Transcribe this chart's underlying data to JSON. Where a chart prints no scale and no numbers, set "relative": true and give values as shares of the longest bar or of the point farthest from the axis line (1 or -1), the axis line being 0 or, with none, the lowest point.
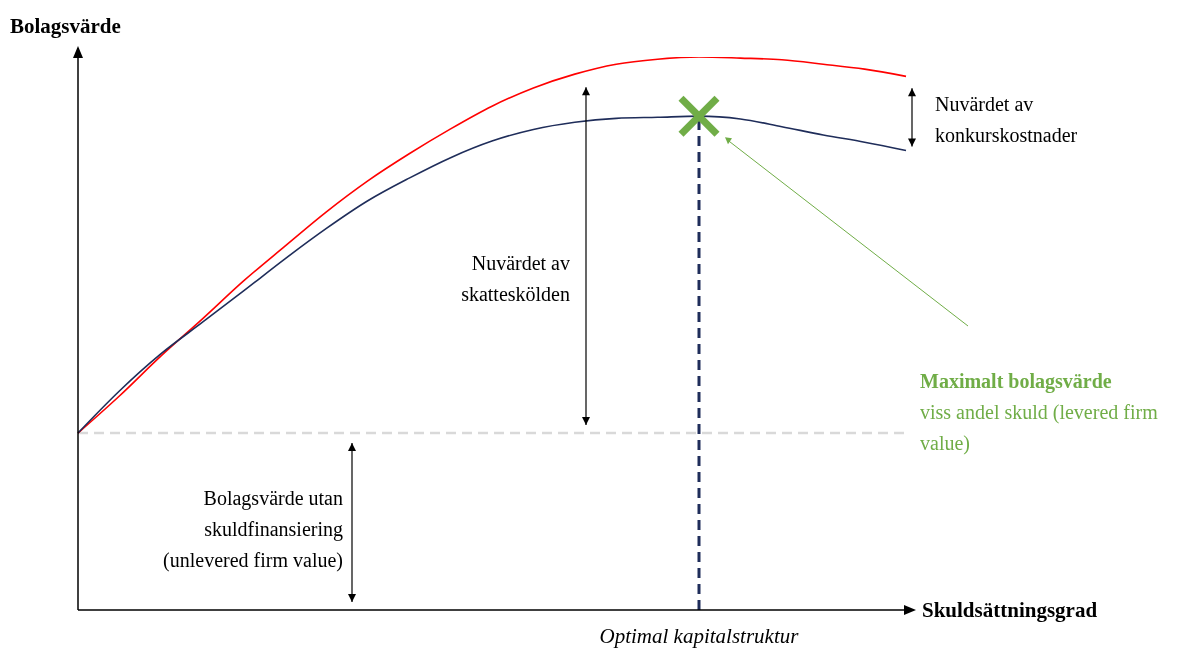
{
  "chart_data": {
    "type": "line",
    "relative": true,
    "xlabel": "Skuldsättningsgrad",
    "ylabel": "Bolagsvärde",
    "categories": [
      null,
      null,
      null,
      null,
      null,
      null,
      null,
      null,
      null,
      null,
      null,
      null,
      null,
      null,
      null,
      null,
      null,
      null,
      null,
      null,
      null
    ],
    "series": [
      {
        "color": "#ff0000",
        "values": [
          0.32,
          0.387,
          0.459,
          0.526,
          0.595,
          0.658,
          0.72,
          0.776,
          0.825,
          0.87,
          0.911,
          0.944,
          0.969,
          0.987,
          0.996,
          1,
          0.998,
          0.995,
          0.987,
          0.978,
          0.965
        ]
      },
      {
        "color": "#1f2d5a",
        "values": [
          0.32,
          0.396,
          0.463,
          0.52,
          0.577,
          0.635,
          0.69,
          0.74,
          0.781,
          0.818,
          0.848,
          0.869,
          0.882,
          0.889,
          0.891,
          0.893,
          0.888,
          0.874,
          0.859,
          0.846,
          0.831
        ]
      }
    ],
    "ref_lines": [
      {
        "axis": "y",
        "value": 0.32,
        "color": "#d9d9d9",
        "line_style": "dashed"
      },
      {
        "axis": "x",
        "label": "Optimal kapitalstruktur",
        "color": "#1f2d5a",
        "line_style": "dashed"
      }
    ],
    "annotations": [
      "Nuvärdet av skatteskölden",
      "Nuvärdet av konkurskostnader",
      "Bolagsvärde utan skuldfinansiering (unlevered firm value)",
      "Maximalt bolagsvärde",
      "viss andel skuld (levered firm value)"
    ]
  }
}
